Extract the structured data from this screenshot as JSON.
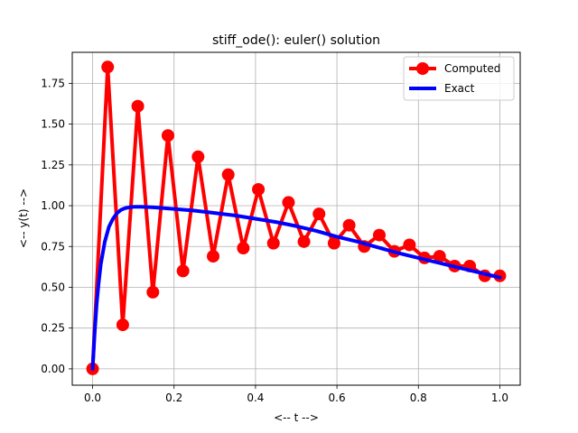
{
  "chart_data": {
    "type": "line",
    "title": "stiff_ode(): euler() solution",
    "xlabel": "<-- t -->",
    "ylabel": "<-- y(t) -->",
    "xlim": [
      -0.05,
      1.05
    ],
    "ylim": [
      -0.1,
      1.94
    ],
    "xticks": [
      0.0,
      0.2,
      0.4,
      0.6,
      0.8,
      1.0
    ],
    "xtick_labels": [
      "0.0",
      "0.2",
      "0.4",
      "0.6",
      "0.8",
      "1.0"
    ],
    "yticks": [
      0.0,
      0.25,
      0.5,
      0.75,
      1.0,
      1.25,
      1.5,
      1.75
    ],
    "ytick_labels": [
      "0.00",
      "0.25",
      "0.50",
      "0.75",
      "1.00",
      "1.25",
      "1.50",
      "1.75"
    ],
    "grid": true,
    "legend_position": "top-right",
    "series": [
      {
        "name": "Computed",
        "color": "#ff0000",
        "marker": "circle",
        "x": [
          0.0,
          0.037,
          0.074,
          0.111,
          0.148,
          0.185,
          0.222,
          0.259,
          0.296,
          0.333,
          0.37,
          0.407,
          0.444,
          0.481,
          0.519,
          0.556,
          0.593,
          0.63,
          0.667,
          0.704,
          0.741,
          0.778,
          0.815,
          0.852,
          0.889,
          0.926,
          0.963,
          1.0
        ],
        "y": [
          0.0,
          1.85,
          0.27,
          1.61,
          0.47,
          1.43,
          0.6,
          1.3,
          0.69,
          1.19,
          0.74,
          1.1,
          0.77,
          1.02,
          0.78,
          0.95,
          0.77,
          0.88,
          0.75,
          0.82,
          0.72,
          0.76,
          0.68,
          0.69,
          0.63,
          0.63,
          0.57,
          0.57
        ]
      },
      {
        "name": "Exact",
        "color": "#0000ff",
        "marker": "none",
        "x": [
          0.0,
          0.005,
          0.01,
          0.015,
          0.02,
          0.03,
          0.04,
          0.05,
          0.06,
          0.07,
          0.08,
          0.09,
          0.1,
          0.12,
          0.15,
          0.2,
          0.25,
          0.3,
          0.35,
          0.4,
          0.45,
          0.5,
          0.55,
          0.6,
          0.65,
          0.7,
          0.75,
          0.8,
          0.85,
          0.9,
          0.95,
          1.0
        ],
        "y": [
          0.0,
          0.22,
          0.4,
          0.53,
          0.64,
          0.78,
          0.87,
          0.92,
          0.955,
          0.975,
          0.985,
          0.99,
          0.993,
          0.993,
          0.99,
          0.98,
          0.97,
          0.955,
          0.94,
          0.92,
          0.9,
          0.875,
          0.845,
          0.81,
          0.78,
          0.745,
          0.71,
          0.68,
          0.65,
          0.62,
          0.59,
          0.56
        ]
      }
    ]
  }
}
